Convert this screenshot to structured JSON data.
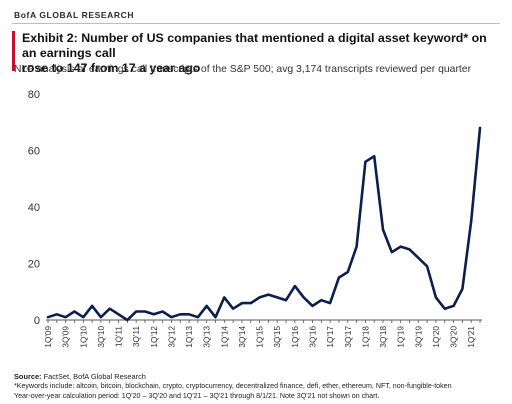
{
  "header": {
    "brand": "BofA GLOBAL RESEARCH",
    "title_line1": "Exhibit 2: Number of US companies that mentioned a digital asset keyword* on an earnings call",
    "title_line2": "rose to 147 from 17 a year ago",
    "subtitle": "NLP analysis of earnings call transcripts of the S&P 500; avg 3,174 transcripts reviewed per quarter",
    "accent_color": "#c8102e"
  },
  "chart_data": {
    "type": "line",
    "title": "",
    "xlabel": "",
    "ylabel": "",
    "ylim": [
      0,
      80
    ],
    "yticks": [
      0,
      20,
      40,
      60,
      80
    ],
    "grid": false,
    "line_color": "#0b1f4d",
    "x": [
      "1Q'09",
      "2Q'09",
      "3Q'09",
      "4Q'09",
      "1Q'10",
      "2Q'10",
      "3Q'10",
      "4Q'10",
      "1Q'11",
      "2Q'11",
      "3Q'11",
      "4Q'11",
      "1Q'12",
      "2Q'12",
      "3Q'12",
      "4Q'12",
      "1Q'13",
      "2Q'13",
      "3Q'13",
      "4Q'13",
      "1Q'14",
      "2Q'14",
      "3Q'14",
      "4Q'14",
      "1Q'15",
      "2Q'15",
      "3Q'15",
      "4Q'15",
      "1Q'16",
      "2Q'16",
      "3Q'16",
      "4Q'16",
      "1Q'17",
      "2Q'17",
      "3Q'17",
      "4Q'17",
      "1Q'18",
      "2Q'18",
      "3Q'18",
      "4Q'18",
      "1Q'19",
      "2Q'19",
      "3Q'19",
      "4Q'19",
      "1Q'20",
      "2Q'20",
      "3Q'20",
      "4Q'20",
      "1Q'21",
      "2Q'21"
    ],
    "x_tick_labels": [
      "1Q'09",
      "3Q'09",
      "1Q'10",
      "3Q'10",
      "1Q'11",
      "3Q'11",
      "1Q'12",
      "3Q'12",
      "1Q'13",
      "3Q'13",
      "1Q'14",
      "3Q'14",
      "1Q'15",
      "3Q'15",
      "1Q'16",
      "3Q'16",
      "1Q'17",
      "3Q'17",
      "1Q'18",
      "3Q'18",
      "1Q'19",
      "3Q'19",
      "1Q'20",
      "3Q'20",
      "1Q'21"
    ],
    "series": [
      {
        "values": [
          1,
          2,
          1,
          3,
          1,
          5,
          1,
          4,
          2,
          0,
          3,
          3,
          2,
          3,
          1,
          2,
          2,
          1,
          5,
          1,
          8,
          4,
          6,
          6,
          8,
          9,
          8,
          7,
          12,
          8,
          5,
          7,
          6,
          15,
          17,
          26,
          56,
          58,
          32,
          24,
          26,
          25,
          22,
          19,
          8,
          4,
          5,
          11,
          35,
          68
        ]
      }
    ]
  },
  "footer": {
    "source_label": "Source:",
    "source_text": " FactSet, BofA Global Research",
    "note1": "*Keywords include: altcoin, bitcoin, blockchain, crypto, cryptocurrency, decentralized finance, defi, ether, ethereum, NFT, non-fungible-token",
    "note2": "Year-over-year calculation period: 1Q'20 – 3Q'20 and 1Q'21 – 3Q'21 through 8/1/21. Note 3Q'21 not shown on chart."
  }
}
